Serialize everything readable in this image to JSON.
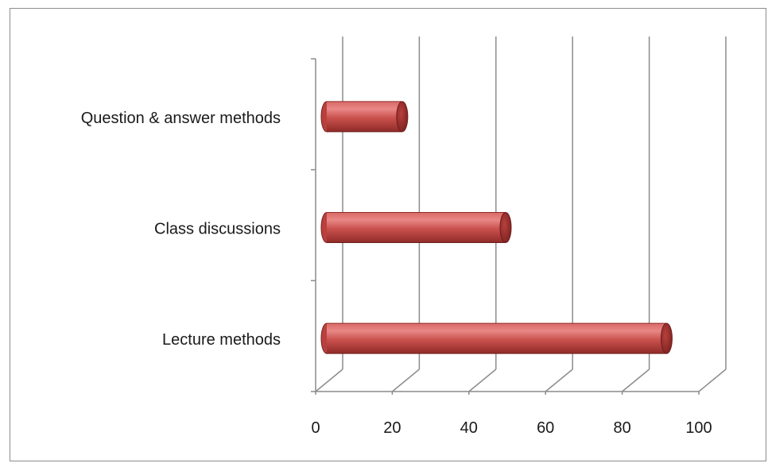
{
  "chart_data": {
    "type": "bar",
    "orientation": "horizontal",
    "style": "3d-cylinder",
    "title": "",
    "xlabel": "",
    "ylabel": "",
    "categories": [
      "Question & answer methods",
      "Class discussions",
      "Lecture methods"
    ],
    "values": [
      23,
      50,
      92
    ],
    "xlim": [
      0,
      100
    ],
    "xticks": [
      0,
      20,
      40,
      60,
      80,
      100
    ],
    "xtick_labels": [
      "0",
      "20",
      "40",
      "60",
      "80",
      "100"
    ],
    "grid": true,
    "legend": "none",
    "bar_color": "#c0504d"
  }
}
